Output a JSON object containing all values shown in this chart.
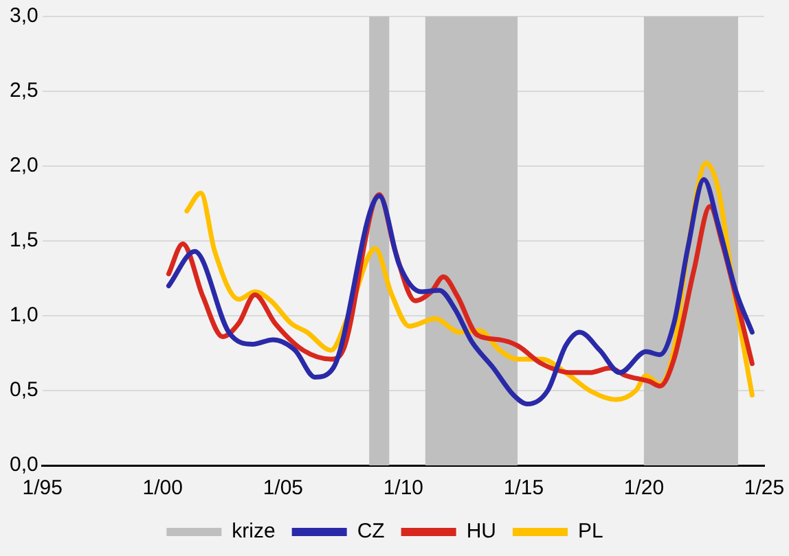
{
  "chart_data": {
    "type": "line",
    "xlim": [
      "1995-01",
      "2025-01"
    ],
    "xticks": [
      {
        "value": "1995-01",
        "label": "1/95"
      },
      {
        "value": "2000-01",
        "label": "1/00"
      },
      {
        "value": "2005-01",
        "label": "1/05"
      },
      {
        "value": "2010-01",
        "label": "1/10"
      },
      {
        "value": "2015-01",
        "label": "1/15"
      },
      {
        "value": "2020-01",
        "label": "1/20"
      },
      {
        "value": "2025-01",
        "label": "1/25"
      }
    ],
    "ylim": [
      0,
      3
    ],
    "yticks": [
      {
        "value": 0,
        "label": "0,0"
      },
      {
        "value": 0.5,
        "label": "0,5"
      },
      {
        "value": 1,
        "label": "1,0"
      },
      {
        "value": 1.5,
        "label": "1,5"
      },
      {
        "value": 2,
        "label": "2,0"
      },
      {
        "value": 2.5,
        "label": "2,5"
      },
      {
        "value": 3,
        "label": "3,0"
      }
    ],
    "grid": "y",
    "legend": "bottom",
    "marker": "none",
    "line_style": "solid",
    "bands": [
      {
        "axis": "x",
        "from": "2008-08",
        "to": "2009-06",
        "label": "krize",
        "color": "#bfbfbf"
      },
      {
        "axis": "x",
        "from": "2010-12",
        "to": "2014-10",
        "color": "#bfbfbf"
      },
      {
        "axis": "x",
        "from": "2020-01",
        "to": "2023-12",
        "color": "#bfbfbf"
      }
    ],
    "series": [
      {
        "name": "CZ",
        "color": "#2a2aa8",
        "x": [
          "2000-04",
          "2001-05",
          "2002-10",
          "2003-10",
          "2004-08",
          "2005-07",
          "2006-05",
          "2007-02",
          "2009-01",
          "2009-11",
          "2010-10",
          "2011-07",
          "2012-03",
          "2012-11",
          "2013-10",
          "2014-08",
          "2015-03",
          "2016-01",
          "2016-10",
          "2017-05",
          "2018-03",
          "2019-01",
          "2020-02",
          "2020-09",
          "2021-04",
          "2021-11",
          "2022-07",
          "2023-02",
          "2023-11",
          "2024-07"
        ],
        "values": [
          1.2,
          1.43,
          0.89,
          0.81,
          0.84,
          0.77,
          0.59,
          0.65,
          1.8,
          1.34,
          1.16,
          1.17,
          1.04,
          0.83,
          0.65,
          0.47,
          0.41,
          0.5,
          0.8,
          0.89,
          0.77,
          0.62,
          0.76,
          0.74,
          0.95,
          1.46,
          1.91,
          1.61,
          1.16,
          0.89
        ]
      },
      {
        "name": "HU",
        "color": "#d8281e",
        "x": [
          "2000-04",
          "2000-11",
          "2001-09",
          "2002-07",
          "2003-03",
          "2003-11",
          "2004-09",
          "2005-11",
          "2007-01",
          "2007-07",
          "2009-01",
          "2009-09",
          "2010-07",
          "2011-03",
          "2011-09",
          "2012-04",
          "2013-02",
          "2014-01",
          "2014-10",
          "2015-10",
          "2017-01",
          "2017-10",
          "2018-08",
          "2019-04",
          "2020-04",
          "2020-09",
          "2021-04",
          "2022-02",
          "2022-10",
          "2023-04",
          "2024-01",
          "2024-07"
        ],
        "values": [
          1.28,
          1.48,
          1.13,
          0.86,
          0.95,
          1.14,
          0.95,
          0.77,
          0.71,
          0.77,
          1.81,
          1.43,
          1.1,
          1.16,
          1.26,
          1.13,
          0.87,
          0.84,
          0.8,
          0.68,
          0.62,
          0.62,
          0.65,
          0.6,
          0.56,
          0.53,
          0.71,
          1.31,
          1.73,
          1.49,
          1.01,
          0.68
        ]
      },
      {
        "name": "PL",
        "color": "#ffc000",
        "x": [
          "2001-01",
          "2001-08",
          "2002-03",
          "2003-03",
          "2003-11",
          "2004-07",
          "2005-05",
          "2006-01",
          "2007-01",
          "2007-09",
          "2008-11",
          "2009-07",
          "2010-04",
          "2011-05",
          "2012-05",
          "2013-03",
          "2014-01",
          "2014-10",
          "2015-10",
          "2016-10",
          "2017-10",
          "2018-11",
          "2019-09",
          "2020-02",
          "2020-09",
          "2021-04",
          "2021-11",
          "2022-08",
          "2023-02",
          "2023-10",
          "2024-07"
        ],
        "values": [
          1.7,
          1.82,
          1.43,
          1.11,
          1.16,
          1.1,
          0.95,
          0.89,
          0.77,
          0.98,
          1.45,
          1.15,
          0.93,
          0.98,
          0.89,
          0.9,
          0.77,
          0.71,
          0.71,
          0.62,
          0.5,
          0.44,
          0.5,
          0.6,
          0.54,
          0.77,
          1.46,
          2.02,
          1.85,
          1.16,
          0.47
        ]
      }
    ]
  }
}
